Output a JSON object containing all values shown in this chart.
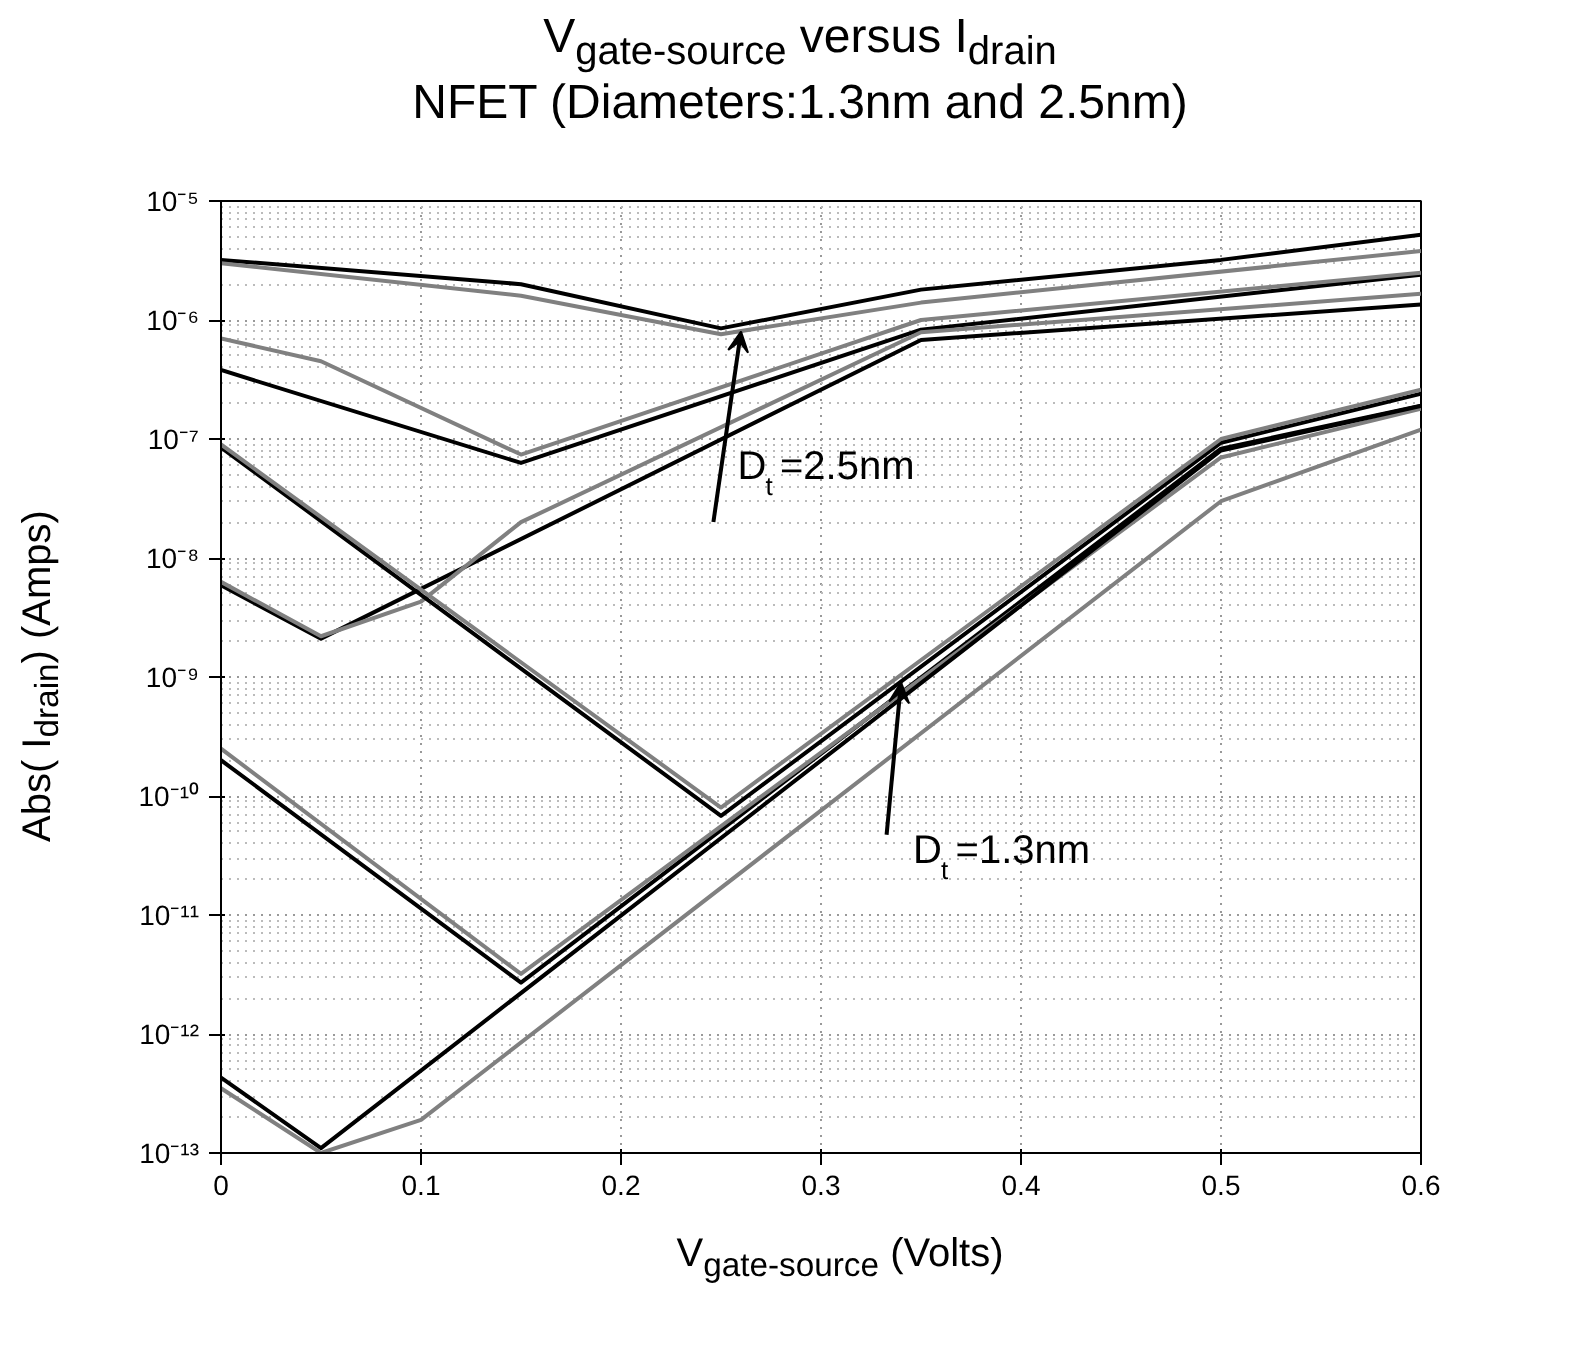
{
  "chart_data": {
    "type": "line",
    "title": "V$_{gate-source}$ versus I$_{drain}$\nNFET (Diameters:1.3nm and 2.5nm)",
    "xlabel": "V$_{gate-source}$ (Volts)",
    "ylabel": "Abs( I$_{drain}$)  (Amps)",
    "log": "y",
    "grid": true,
    "marker": "none",
    "line_style": "solid",
    "xlim": [
      0,
      0.6
    ],
    "xticks": [
      0,
      0.1,
      0.2,
      0.3,
      0.4,
      0.5,
      0.6
    ],
    "ylim": [
      1e-13,
      1e-05
    ],
    "yticks": [
      {
        "value": 1e-13,
        "label": "10⁻¹³"
      },
      {
        "value": 1e-12,
        "label": "10⁻¹²"
      },
      {
        "value": 1e-11,
        "label": "10⁻¹¹"
      },
      {
        "value": 1e-10,
        "label": "10⁻¹⁰"
      },
      {
        "value": 1e-09,
        "label": "10⁻⁹"
      },
      {
        "value": 1e-08,
        "label": "10⁻⁸"
      },
      {
        "value": 1e-07,
        "label": "10⁻⁷"
      },
      {
        "value": 1e-06,
        "label": "10⁻⁶"
      },
      {
        "value": 1e-05,
        "label": "10⁻⁵"
      }
    ],
    "annotations": [
      {
        "text": "D$_{t}$=2.5nm",
        "x": 0.26,
        "y": 8e-07
      },
      {
        "text": "D$_{t}$=1.3nm",
        "x": 0.34,
        "y": 9e-10
      }
    ],
    "series": [
      {
        "color": "#000000",
        "x": [
          0,
          0.15,
          0.25,
          0.35,
          0.5,
          0.6
        ],
        "values": [
          3.2e-06,
          2e-06,
          8.5e-07,
          1.8e-06,
          3.2e-06,
          5.2e-06
        ]
      },
      {
        "color": "#808080",
        "x": [
          0,
          0.15,
          0.25,
          0.35,
          0.6
        ],
        "values": [
          3e-06,
          1.6e-06,
          7.6e-07,
          1.4e-06,
          3.8e-06
        ]
      },
      {
        "color": "#000000",
        "x": [
          0,
          0.15,
          0.35,
          0.6
        ],
        "values": [
          3.8e-07,
          6.3e-08,
          8.3e-07,
          2.4e-06
        ]
      },
      {
        "color": "#808080",
        "x": [
          0,
          0.05,
          0.15,
          0.35,
          0.6
        ],
        "values": [
          7e-07,
          4.5e-07,
          7.4e-08,
          1e-06,
          2.5e-06
        ]
      },
      {
        "color": "#000000",
        "x": [
          0,
          0.05,
          0.35,
          0.6
        ],
        "values": [
          5.9e-09,
          2.1e-09,
          6.8e-07,
          1.35e-06
        ]
      },
      {
        "color": "#808080",
        "x": [
          0,
          0.05,
          0.1,
          0.15,
          0.35,
          0.6
        ],
        "values": [
          6.3e-09,
          2.2e-09,
          4.3e-09,
          2e-08,
          7.9e-07,
          1.66e-06
        ]
      },
      {
        "color": "#000000",
        "x": [
          0,
          0.25,
          0.5,
          0.6
        ],
        "values": [
          8.5e-08,
          6.8e-11,
          9.3e-08,
          2.4e-07
        ]
      },
      {
        "color": "#808080",
        "x": [
          0,
          0.25,
          0.5,
          0.6
        ],
        "values": [
          9e-08,
          8e-11,
          1e-07,
          2.6e-07
        ]
      },
      {
        "color": "#000000",
        "x": [
          0,
          0.15,
          0.5,
          0.6
        ],
        "values": [
          2e-10,
          2.7e-12,
          8.3e-08,
          1.9e-07
        ]
      },
      {
        "color": "#808080",
        "x": [
          0,
          0.15,
          0.5,
          0.6
        ],
        "values": [
          2.5e-10,
          3.2e-12,
          7e-08,
          1.8e-07
        ]
      },
      {
        "color": "#000000",
        "x": [
          0,
          0.05,
          0.5,
          0.6
        ],
        "values": [
          4.3e-13,
          1.1e-13,
          8e-08,
          1.9e-07
        ]
      },
      {
        "color": "#808080",
        "x": [
          0,
          0.05,
          0.1,
          0.5,
          0.6
        ],
        "values": [
          3.5e-13,
          1e-13,
          1.9e-13,
          3e-08,
          1.2e-07
        ]
      }
    ]
  }
}
